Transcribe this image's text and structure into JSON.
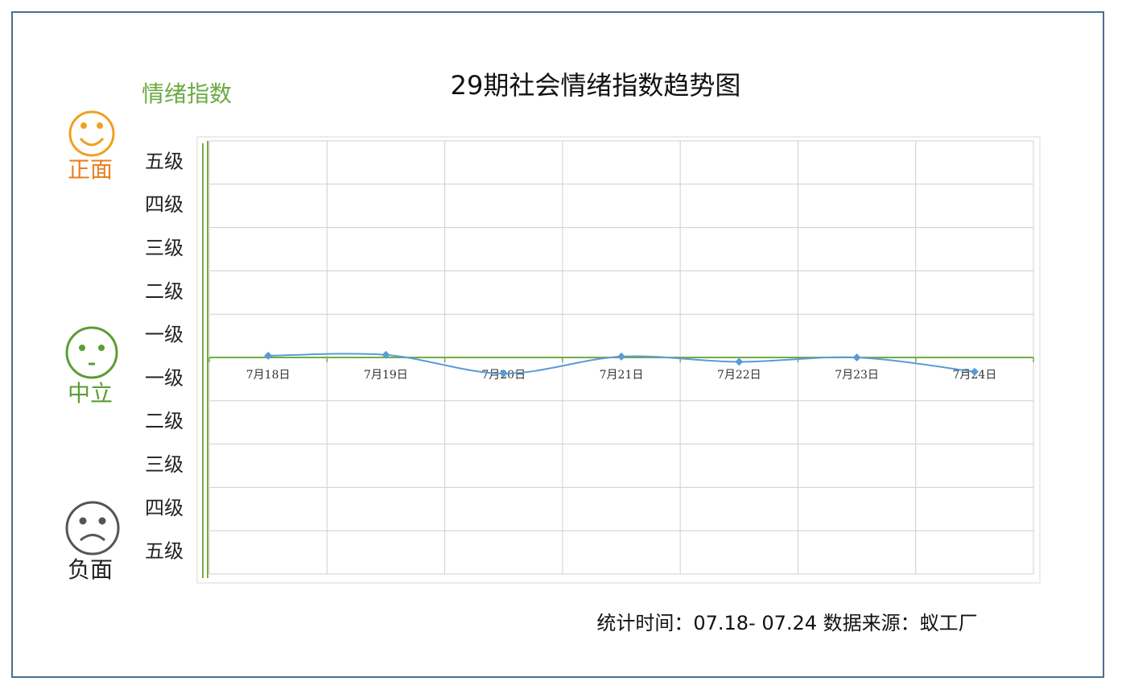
{
  "chart_data": {
    "type": "line",
    "title": "29期社会情绪指数趋势图",
    "y_label": "情绪指数",
    "sentiment_labels": [
      {
        "text": "正面",
        "color": "#e8801e"
      },
      {
        "text": "中立",
        "color": "#5a9e32"
      },
      {
        "text": "负面",
        "color": "#222222"
      }
    ],
    "categories": [
      "7月18日",
      "7月19日",
      "7月20日",
      "7月21日",
      "7月22日",
      "7月23日",
      "7月24日"
    ],
    "series": [
      {
        "color": "#5b9bd5",
        "values": [
          0.04,
          0.06,
          -0.37,
          0.02,
          -0.1,
          0,
          -0.33
        ]
      }
    ],
    "ylim": [
      -5,
      5
    ],
    "yticks": [
      {
        "value": 4.5,
        "label": "五级"
      },
      {
        "value": 3.5,
        "label": "四级"
      },
      {
        "value": 2.5,
        "label": "三级"
      },
      {
        "value": 1.5,
        "label": "二级"
      },
      {
        "value": 0.5,
        "label": "一级"
      },
      {
        "value": -0.5,
        "label": "一级"
      },
      {
        "value": -1.5,
        "label": "二级"
      },
      {
        "value": -2.5,
        "label": "三级"
      },
      {
        "value": -3.5,
        "label": "四级"
      },
      {
        "value": -4.5,
        "label": "五级"
      }
    ],
    "ygrid": [
      -5,
      -4,
      -3,
      -2,
      -1,
      0,
      1,
      2,
      3,
      4,
      5
    ],
    "grid": true,
    "footer": "统计时间：07.18- 07.24 数据来源：蚁工厂"
  }
}
